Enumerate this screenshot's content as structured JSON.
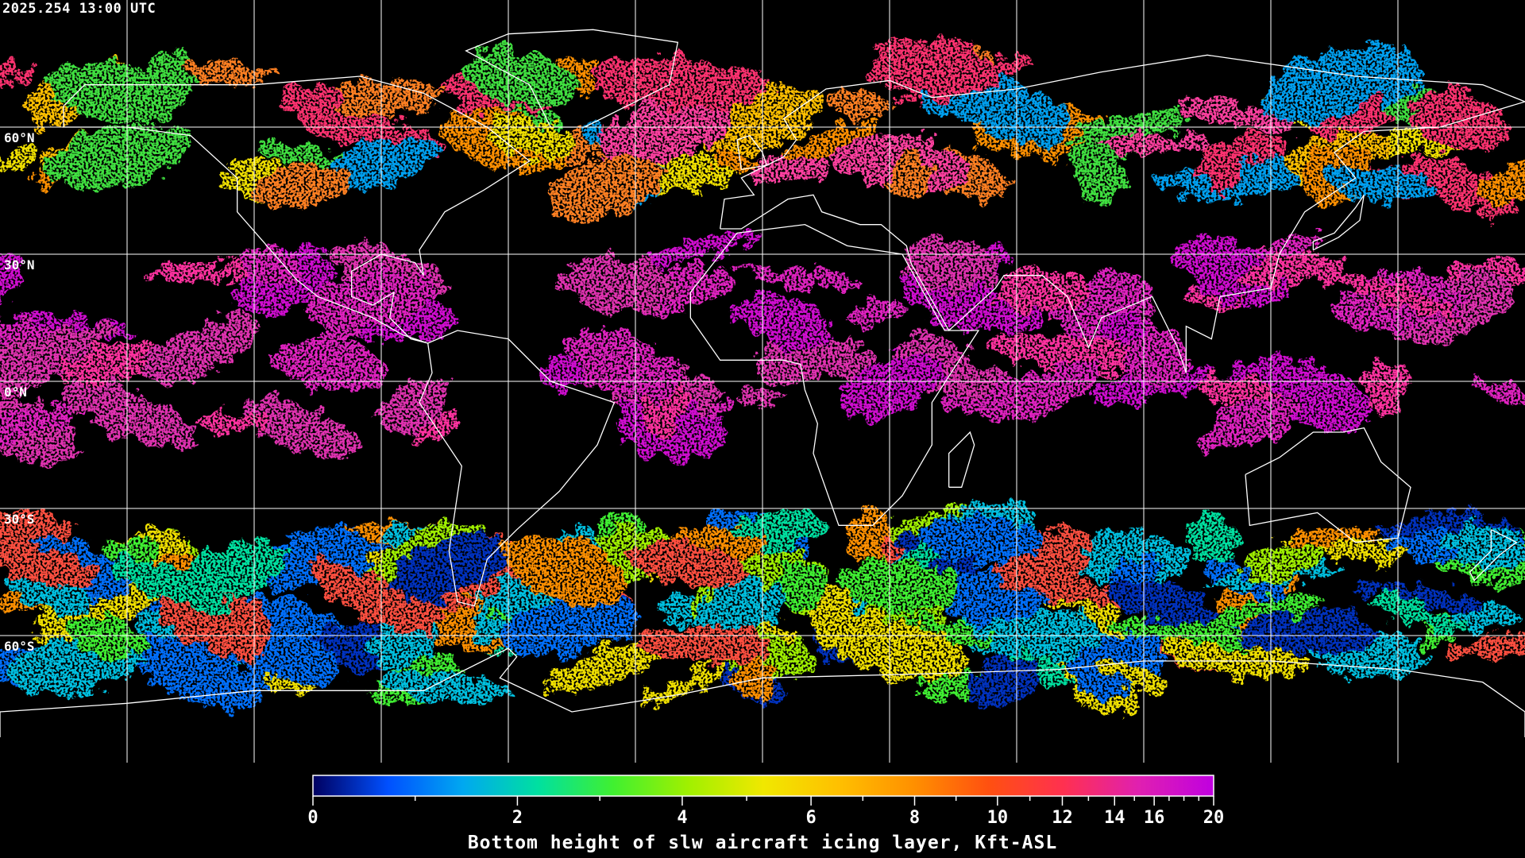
{
  "timestamp": "2025.254 13:00 UTC",
  "map": {
    "projection": "equirectangular",
    "lon_range": [
      -180,
      180
    ],
    "lat_range": [
      -90,
      90
    ],
    "grid_spacing_deg": 30,
    "lat_labels": [
      "60°N",
      "30°N",
      "0°N",
      "30°S",
      "60°S"
    ],
    "background_color": "#000000",
    "coastline_color": "#ffffff",
    "grid_color": "#ffffff"
  },
  "colorbar": {
    "title": "Bottom height of slw aircraft icing layer, Kft-ASL",
    "tick_labels": [
      "0",
      "2",
      "4",
      "6",
      "8",
      "10",
      "12",
      "14",
      "16",
      "20"
    ],
    "minor_ticks": [
      1,
      3,
      5,
      7,
      9,
      11,
      13,
      15,
      17,
      18,
      19
    ],
    "range": [
      0,
      20
    ],
    "colors": [
      "#000060",
      "#0050ff",
      "#00a8f0",
      "#00e0a0",
      "#40f030",
      "#a0f000",
      "#f0e800",
      "#ffc000",
      "#ff9000",
      "#ff5010",
      "#ff3050",
      "#e020b0",
      "#c000e0"
    ]
  }
}
